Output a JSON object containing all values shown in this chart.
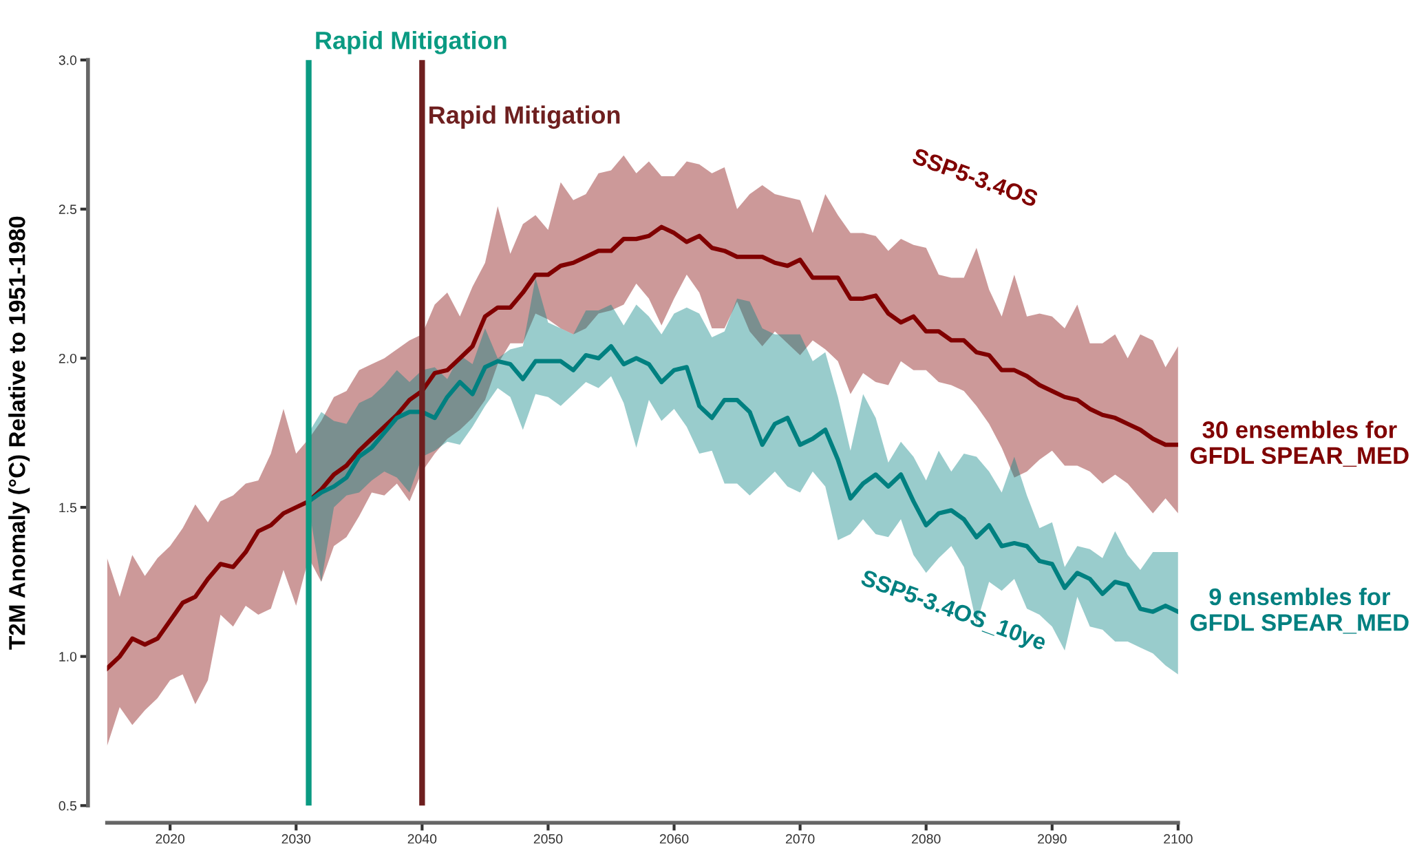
{
  "chart_data": {
    "type": "line",
    "ylabel": "T2M Anomaly (°C) Relative to 1951-1980",
    "xlim": [
      2015,
      2100
    ],
    "xticks": [
      2020,
      2030,
      2040,
      2050,
      2060,
      2070,
      2080,
      2090,
      2100
    ],
    "ylim": [
      0.5,
      3.0
    ],
    "yticks": [
      0.5,
      {
        "value": 1,
        "label": "1.0"
      },
      1.5,
      {
        "value": 2,
        "label": "2.0"
      },
      2.5,
      {
        "value": 3,
        "label": "3.0"
      }
    ],
    "grid": false,
    "legend": false,
    "series": [
      {
        "name": "30 ensembles for\nGFDL SPEAR_MED",
        "color": "#800000",
        "x": [
          2015,
          2016,
          2017,
          2018,
          2019,
          2020,
          2021,
          2022,
          2023,
          2024,
          2025,
          2026,
          2027,
          2028,
          2029,
          2030,
          2031,
          2032,
          2033,
          2034,
          2035,
          2036,
          2037,
          2038,
          2039,
          2040,
          2041,
          2042,
          2043,
          2044,
          2045,
          2046,
          2047,
          2048,
          2049,
          2050,
          2051,
          2052,
          2053,
          2054,
          2055,
          2056,
          2057,
          2058,
          2059,
          2060,
          2061,
          2062,
          2063,
          2064,
          2065,
          2066,
          2067,
          2068,
          2069,
          2070,
          2071,
          2072,
          2073,
          2074,
          2075,
          2076,
          2077,
          2078,
          2079,
          2080,
          2081,
          2082,
          2083,
          2084,
          2085,
          2086,
          2087,
          2088,
          2089,
          2090,
          2091,
          2092,
          2093,
          2094,
          2095,
          2096,
          2097,
          2098,
          2099,
          2100
        ],
        "values": [
          0.96,
          1.0,
          1.06,
          1.04,
          1.06,
          1.12,
          1.18,
          1.2,
          1.26,
          1.31,
          1.3,
          1.35,
          1.42,
          1.44,
          1.48,
          1.5,
          1.52,
          1.56,
          1.61,
          1.64,
          1.69,
          1.73,
          1.77,
          1.81,
          1.86,
          1.89,
          1.95,
          1.96,
          2.0,
          2.04,
          2.14,
          2.17,
          2.17,
          2.22,
          2.28,
          2.28,
          2.31,
          2.32,
          2.34,
          2.36,
          2.36,
          2.4,
          2.4,
          2.41,
          2.44,
          2.42,
          2.39,
          2.41,
          2.37,
          2.36,
          2.34,
          2.34,
          2.34,
          2.32,
          2.31,
          2.33,
          2.27,
          2.27,
          2.27,
          2.2,
          2.2,
          2.21,
          2.15,
          2.12,
          2.14,
          2.09,
          2.09,
          2.06,
          2.06,
          2.02,
          2.01,
          1.96,
          1.96,
          1.94,
          1.91,
          1.89,
          1.87,
          1.86,
          1.83,
          1.81,
          1.8,
          1.78,
          1.76,
          1.73,
          1.71,
          1.71
        ],
        "upper": [
          1.33,
          1.2,
          1.34,
          1.27,
          1.33,
          1.37,
          1.43,
          1.51,
          1.45,
          1.52,
          1.54,
          1.58,
          1.59,
          1.68,
          1.83,
          1.68,
          1.73,
          1.79,
          1.87,
          1.89,
          1.96,
          1.98,
          2.0,
          2.03,
          2.06,
          2.08,
          2.18,
          2.22,
          2.14,
          2.24,
          2.32,
          2.51,
          2.35,
          2.45,
          2.48,
          2.43,
          2.59,
          2.53,
          2.55,
          2.62,
          2.63,
          2.68,
          2.62,
          2.66,
          2.61,
          2.61,
          2.66,
          2.65,
          2.62,
          2.64,
          2.5,
          2.55,
          2.58,
          2.55,
          2.54,
          2.53,
          2.42,
          2.55,
          2.48,
          2.42,
          2.42,
          2.41,
          2.36,
          2.4,
          2.38,
          2.37,
          2.28,
          2.27,
          2.27,
          2.37,
          2.23,
          2.14,
          2.28,
          2.14,
          2.15,
          2.14,
          2.1,
          2.18,
          2.05,
          2.05,
          2.08,
          2.0,
          2.08,
          2.06,
          1.97,
          2.04
        ],
        "lower": [
          0.7,
          0.83,
          0.77,
          0.82,
          0.86,
          0.92,
          0.94,
          0.84,
          0.92,
          1.14,
          1.1,
          1.17,
          1.14,
          1.16,
          1.29,
          1.17,
          1.33,
          1.25,
          1.37,
          1.4,
          1.47,
          1.55,
          1.54,
          1.58,
          1.52,
          1.62,
          1.68,
          1.73,
          1.76,
          1.8,
          1.86,
          1.98,
          2.05,
          2.05,
          2.15,
          2.13,
          2.1,
          2.08,
          2.1,
          2.15,
          2.16,
          2.18,
          2.25,
          2.2,
          2.11,
          2.2,
          2.28,
          2.22,
          2.1,
          2.1,
          2.19,
          2.09,
          2.04,
          2.09,
          2.05,
          2.01,
          2.06,
          2.03,
          1.99,
          1.88,
          1.95,
          1.92,
          1.91,
          1.99,
          1.96,
          1.96,
          1.92,
          1.91,
          1.89,
          1.84,
          1.78,
          1.7,
          1.6,
          1.62,
          1.66,
          1.69,
          1.64,
          1.64,
          1.62,
          1.58,
          1.61,
          1.58,
          1.53,
          1.48,
          1.53,
          1.48
        ]
      },
      {
        "name": "9 ensembles for\nGFDL SPEAR_MED",
        "color": "#008080",
        "x": [
          2031,
          2032,
          2033,
          2034,
          2035,
          2036,
          2037,
          2038,
          2039,
          2040,
          2041,
          2042,
          2043,
          2044,
          2045,
          2046,
          2047,
          2048,
          2049,
          2050,
          2051,
          2052,
          2053,
          2054,
          2055,
          2056,
          2057,
          2058,
          2059,
          2060,
          2061,
          2062,
          2063,
          2064,
          2065,
          2066,
          2067,
          2068,
          2069,
          2070,
          2071,
          2072,
          2073,
          2074,
          2075,
          2076,
          2077,
          2078,
          2079,
          2080,
          2081,
          2082,
          2083,
          2084,
          2085,
          2086,
          2087,
          2088,
          2089,
          2090,
          2091,
          2092,
          2093,
          2094,
          2095,
          2096,
          2097,
          2098,
          2099,
          2100
        ],
        "values": [
          1.52,
          1.55,
          1.57,
          1.6,
          1.67,
          1.7,
          1.75,
          1.8,
          1.82,
          1.82,
          1.8,
          1.87,
          1.92,
          1.88,
          1.97,
          1.99,
          1.98,
          1.93,
          1.99,
          1.99,
          1.99,
          1.96,
          2.01,
          2.0,
          2.04,
          1.98,
          2.0,
          1.98,
          1.92,
          1.96,
          1.97,
          1.84,
          1.8,
          1.86,
          1.86,
          1.82,
          1.71,
          1.78,
          1.8,
          1.71,
          1.73,
          1.76,
          1.66,
          1.53,
          1.58,
          1.61,
          1.57,
          1.61,
          1.52,
          1.44,
          1.48,
          1.49,
          1.46,
          1.4,
          1.44,
          1.37,
          1.38,
          1.37,
          1.32,
          1.31,
          1.23,
          1.28,
          1.26,
          1.21,
          1.25,
          1.24,
          1.16,
          1.15,
          1.17,
          1.15
        ],
        "upper": [
          1.75,
          1.82,
          1.79,
          1.78,
          1.85,
          1.87,
          1.91,
          1.96,
          1.92,
          1.96,
          1.97,
          1.93,
          2.01,
          1.98,
          2.1,
          2.0,
          2.03,
          2.04,
          2.27,
          2.12,
          2.1,
          2.08,
          2.16,
          2.16,
          2.18,
          2.11,
          2.18,
          2.14,
          2.08,
          2.15,
          2.17,
          2.15,
          2.07,
          2.09,
          2.2,
          2.19,
          2.1,
          2.08,
          2.08,
          2.08,
          1.99,
          2.02,
          1.87,
          1.69,
          1.88,
          1.8,
          1.65,
          1.72,
          1.67,
          1.59,
          1.69,
          1.62,
          1.68,
          1.67,
          1.62,
          1.55,
          1.67,
          1.54,
          1.43,
          1.45,
          1.3,
          1.37,
          1.36,
          1.33,
          1.42,
          1.34,
          1.29,
          1.35,
          1.35,
          1.35
        ],
        "lower": [
          1.5,
          1.25,
          1.5,
          1.54,
          1.55,
          1.59,
          1.62,
          1.6,
          1.55,
          1.67,
          1.69,
          1.72,
          1.71,
          1.77,
          1.84,
          1.9,
          1.87,
          1.76,
          1.88,
          1.87,
          1.84,
          1.88,
          1.92,
          1.9,
          1.94,
          1.85,
          1.7,
          1.86,
          1.79,
          1.83,
          1.77,
          1.68,
          1.69,
          1.58,
          1.58,
          1.54,
          1.58,
          1.62,
          1.57,
          1.55,
          1.62,
          1.57,
          1.39,
          1.41,
          1.46,
          1.41,
          1.4,
          1.46,
          1.34,
          1.28,
          1.33,
          1.37,
          1.3,
          1.11,
          1.25,
          1.22,
          1.26,
          1.16,
          1.14,
          1.1,
          1.02,
          1.2,
          1.1,
          1.09,
          1.05,
          1.05,
          1.03,
          1.01,
          0.97,
          0.94
        ]
      }
    ],
    "ref_lines": [
      {
        "axis": "x",
        "value": 2031,
        "label": "Rapid Mitigation",
        "color": "#0a9a82"
      },
      {
        "axis": "x",
        "value": 2040,
        "label": "Rapid Mitigation",
        "color": "#6e1f1f"
      }
    ],
    "annotations": [
      "SSP5-3.4OS",
      "SSP5-3.4OS_10ye"
    ]
  }
}
